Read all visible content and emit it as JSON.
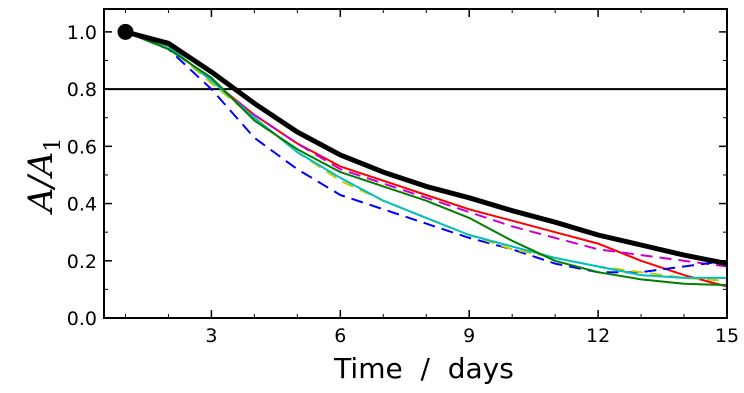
{
  "chart_data": {
    "type": "line",
    "xlabel": "Time  /  days",
    "ylabel_main": "A/A",
    "ylabel_sub": "1",
    "xlim": [
      0.5,
      15
    ],
    "ylim": [
      0.0,
      1.08
    ],
    "x_ticks": [
      3,
      6,
      9,
      12,
      15
    ],
    "y_ticks": [
      0.0,
      0.2,
      0.4,
      0.6,
      0.8,
      1.0
    ],
    "y_tick_labels": [
      "0.0",
      "0.2",
      "0.4",
      "0.6",
      "0.8",
      "1.0"
    ],
    "reference_line_y": 0.8,
    "start_point": {
      "x": 1,
      "y": 1.0
    },
    "grid": false,
    "series": [
      {
        "style": "solid",
        "color": "#000000",
        "width": "bold",
        "x": [
          1,
          2,
          3,
          4,
          5,
          6,
          7,
          8,
          9,
          10,
          11,
          12,
          13,
          14,
          15
        ],
        "y": [
          1.0,
          0.96,
          0.86,
          0.75,
          0.65,
          0.57,
          0.51,
          0.46,
          0.42,
          0.375,
          0.335,
          0.29,
          0.255,
          0.22,
          0.19
        ]
      },
      {
        "style": "solid",
        "color": "#ff0000",
        "x": [
          1,
          2,
          3,
          4,
          5,
          6,
          7,
          8,
          9,
          10,
          11,
          12,
          13,
          14,
          15
        ],
        "y": [
          1.0,
          0.95,
          0.83,
          0.71,
          0.61,
          0.53,
          0.48,
          0.43,
          0.38,
          0.34,
          0.3,
          0.26,
          0.2,
          0.15,
          0.11
        ]
      },
      {
        "style": "dashed",
        "color": "#cc00cc",
        "x": [
          1,
          2,
          3,
          4,
          5,
          6,
          7,
          8,
          9,
          10,
          11,
          12,
          13,
          14,
          15
        ],
        "y": [
          1.0,
          0.95,
          0.83,
          0.71,
          0.61,
          0.52,
          0.47,
          0.42,
          0.37,
          0.32,
          0.28,
          0.24,
          0.22,
          0.2,
          0.18
        ]
      },
      {
        "style": "dashed",
        "color": "#0000ff",
        "x": [
          1,
          2,
          3,
          4,
          5,
          6,
          7,
          8,
          9,
          10,
          11,
          12,
          13,
          14,
          15
        ],
        "y": [
          1.0,
          0.94,
          0.8,
          0.63,
          0.52,
          0.43,
          0.38,
          0.33,
          0.28,
          0.24,
          0.19,
          0.16,
          0.16,
          0.18,
          0.2
        ]
      },
      {
        "style": "dashed",
        "color": "#c8c800",
        "x": [
          1,
          2,
          3,
          4,
          5,
          6,
          7,
          8,
          9,
          10,
          11,
          12,
          13,
          14,
          15
        ],
        "y": [
          1.0,
          0.95,
          0.82,
          0.7,
          0.58,
          0.48,
          0.41,
          0.35,
          0.29,
          0.24,
          0.21,
          0.18,
          0.16,
          0.14,
          0.13
        ]
      },
      {
        "style": "solid",
        "color": "#00bfbf",
        "x": [
          1,
          2,
          3,
          4,
          5,
          6,
          7,
          8,
          9,
          10,
          11,
          12,
          13,
          14,
          15
        ],
        "y": [
          1.0,
          0.95,
          0.83,
          0.7,
          0.58,
          0.49,
          0.41,
          0.35,
          0.29,
          0.25,
          0.21,
          0.18,
          0.15,
          0.14,
          0.14
        ]
      },
      {
        "style": "solid",
        "color": "#007f00",
        "x": [
          1,
          2,
          3,
          4,
          5,
          6,
          7,
          8,
          9,
          10,
          11,
          12,
          13,
          14,
          15
        ],
        "y": [
          1.0,
          0.94,
          0.84,
          0.69,
          0.59,
          0.51,
          0.46,
          0.41,
          0.35,
          0.27,
          0.2,
          0.16,
          0.135,
          0.12,
          0.115
        ]
      }
    ]
  }
}
